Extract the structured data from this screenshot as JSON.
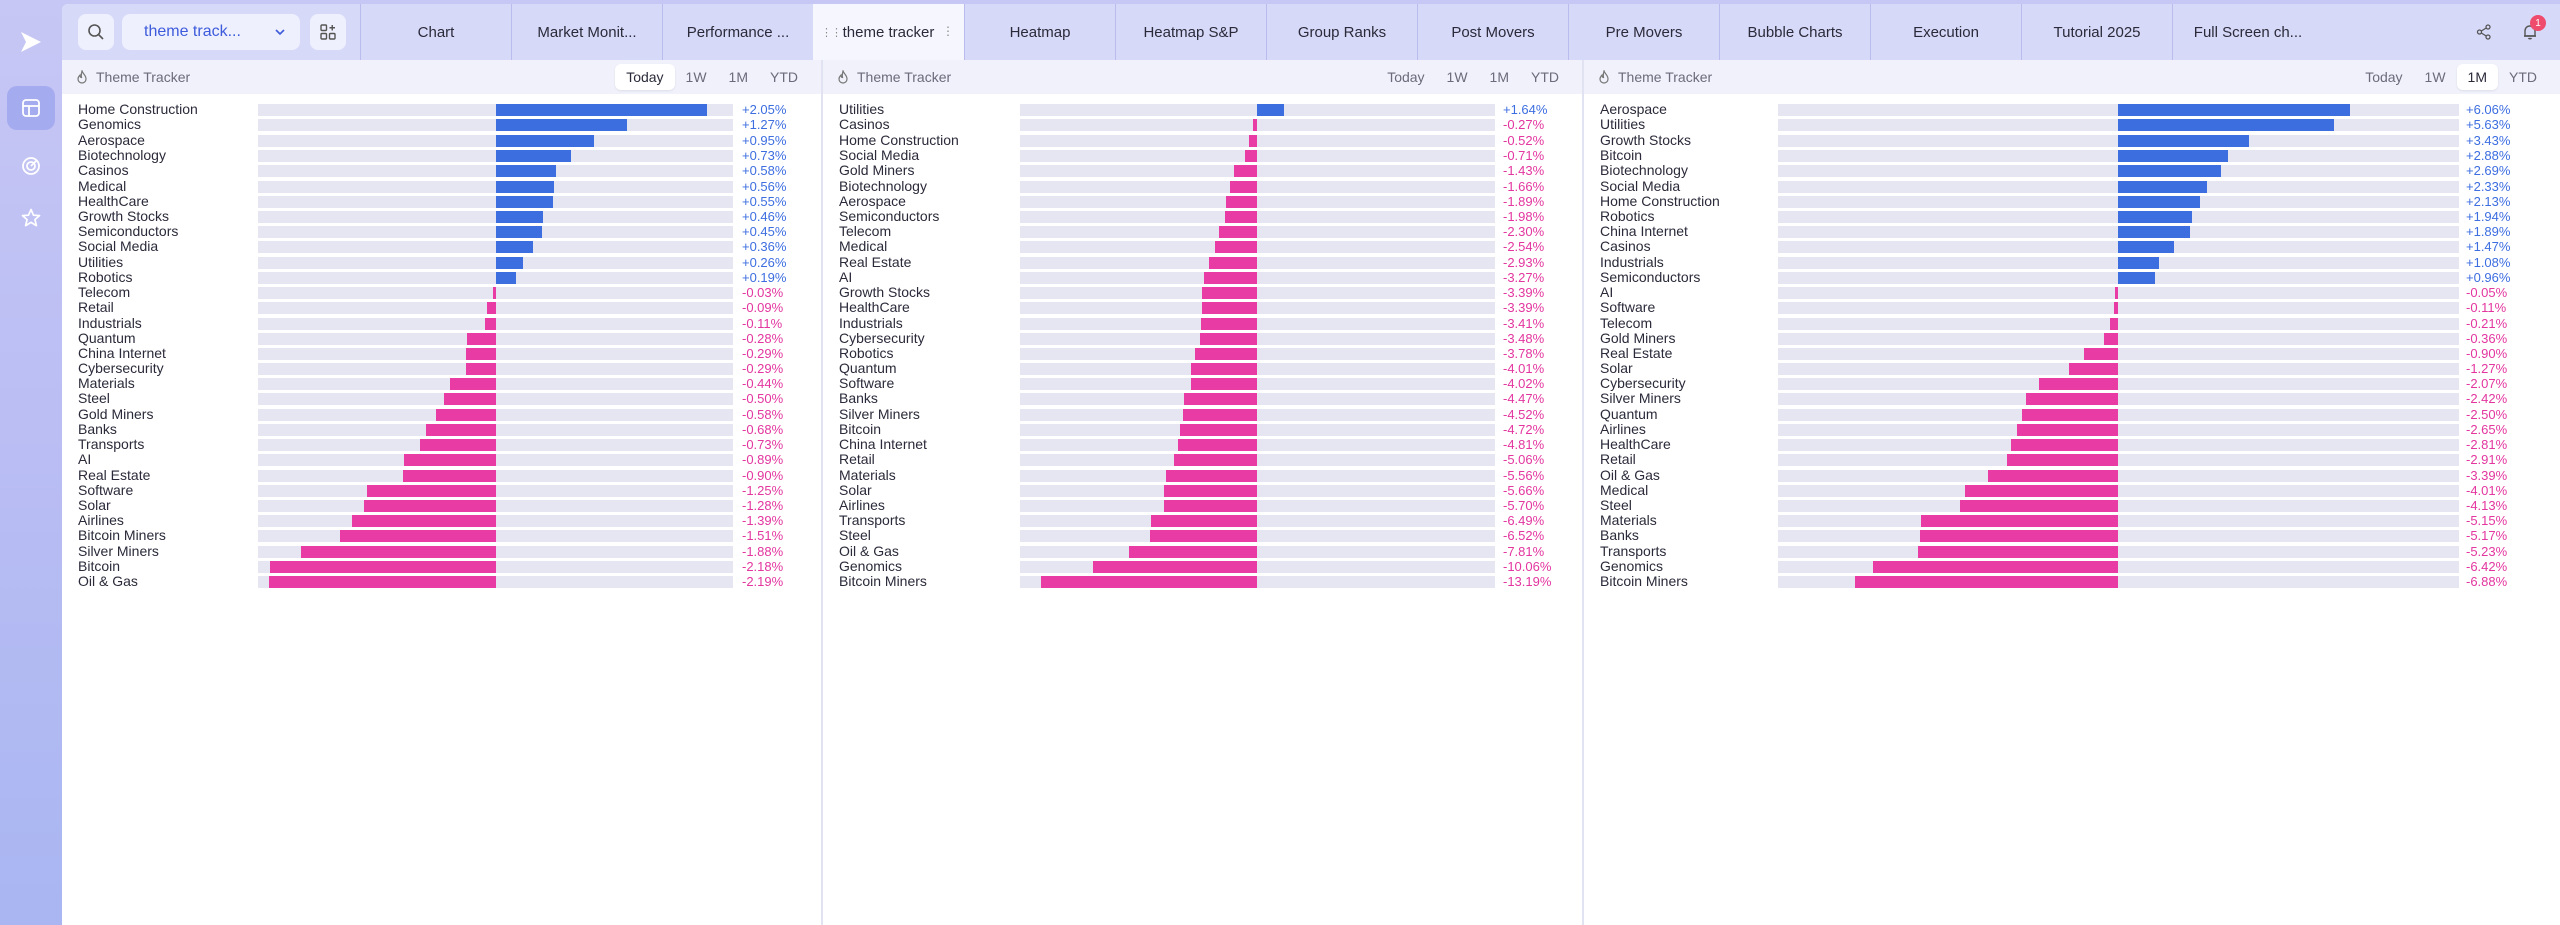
{
  "colors": {
    "positive": "#3d6ee0",
    "negative": "#e83ba4",
    "track": "#e6e6f3",
    "accent": "#3e5bdc"
  },
  "sidebar": {
    "logo_icon": "play-triangle-icon",
    "items": [
      {
        "icon": "layout-icon",
        "active": true
      },
      {
        "icon": "radar-icon",
        "active": false
      },
      {
        "icon": "star-icon",
        "active": false
      }
    ]
  },
  "topbar": {
    "layout_name": "theme track...",
    "tabs": [
      {
        "label": "Chart",
        "active": false
      },
      {
        "label": "Market Monit...",
        "active": false
      },
      {
        "label": "Performance ...",
        "active": false
      },
      {
        "label": "theme tracker",
        "active": true
      },
      {
        "label": "Heatmap",
        "active": false
      },
      {
        "label": "Heatmap S&P",
        "active": false
      },
      {
        "label": "Group Ranks",
        "active": false
      },
      {
        "label": "Post Movers",
        "active": false
      },
      {
        "label": "Pre Movers",
        "active": false
      },
      {
        "label": "Bubble Charts",
        "active": false
      },
      {
        "label": "Execution",
        "active": false
      },
      {
        "label": "Tutorial 2025",
        "active": false
      },
      {
        "label": "Full Screen ch...",
        "active": false
      }
    ],
    "notification_count": "1"
  },
  "panels": [
    {
      "title": "Theme Tracker",
      "ranges": [
        "Today",
        "1W",
        "1M",
        "YTD"
      ],
      "active_range": "Today",
      "scale_max": 2.3,
      "items": [
        {
          "name": "Home Construction",
          "value": 2.05,
          "label": "+2.05%"
        },
        {
          "name": "Genomics",
          "value": 1.27,
          "label": "+1.27%"
        },
        {
          "name": "Aerospace",
          "value": 0.95,
          "label": "+0.95%"
        },
        {
          "name": "Biotechnology",
          "value": 0.73,
          "label": "+0.73%"
        },
        {
          "name": "Casinos",
          "value": 0.58,
          "label": "+0.58%"
        },
        {
          "name": "Medical",
          "value": 0.56,
          "label": "+0.56%"
        },
        {
          "name": "HealthCare",
          "value": 0.55,
          "label": "+0.55%"
        },
        {
          "name": "Growth Stocks",
          "value": 0.46,
          "label": "+0.46%"
        },
        {
          "name": "Semiconductors",
          "value": 0.45,
          "label": "+0.45%"
        },
        {
          "name": "Social Media",
          "value": 0.36,
          "label": "+0.36%"
        },
        {
          "name": "Utilities",
          "value": 0.26,
          "label": "+0.26%"
        },
        {
          "name": "Robotics",
          "value": 0.19,
          "label": "+0.19%"
        },
        {
          "name": "Telecom",
          "value": -0.03,
          "label": "-0.03%"
        },
        {
          "name": "Retail",
          "value": -0.09,
          "label": "-0.09%"
        },
        {
          "name": "Industrials",
          "value": -0.11,
          "label": "-0.11%"
        },
        {
          "name": "Quantum",
          "value": -0.28,
          "label": "-0.28%"
        },
        {
          "name": "China Internet",
          "value": -0.29,
          "label": "-0.29%"
        },
        {
          "name": "Cybersecurity",
          "value": -0.29,
          "label": "-0.29%"
        },
        {
          "name": "Materials",
          "value": -0.44,
          "label": "-0.44%"
        },
        {
          "name": "Steel",
          "value": -0.5,
          "label": "-0.50%"
        },
        {
          "name": "Gold Miners",
          "value": -0.58,
          "label": "-0.58%"
        },
        {
          "name": "Banks",
          "value": -0.68,
          "label": "-0.68%"
        },
        {
          "name": "Transports",
          "value": -0.73,
          "label": "-0.73%"
        },
        {
          "name": "AI",
          "value": -0.89,
          "label": "-0.89%"
        },
        {
          "name": "Real Estate",
          "value": -0.9,
          "label": "-0.90%"
        },
        {
          "name": "Software",
          "value": -1.25,
          "label": "-1.25%"
        },
        {
          "name": "Solar",
          "value": -1.28,
          "label": "-1.28%"
        },
        {
          "name": "Airlines",
          "value": -1.39,
          "label": "-1.39%"
        },
        {
          "name": "Bitcoin Miners",
          "value": -1.51,
          "label": "-1.51%"
        },
        {
          "name": "Silver Miners",
          "value": -1.88,
          "label": "-1.88%"
        },
        {
          "name": "Bitcoin",
          "value": -2.18,
          "label": "-2.18%"
        },
        {
          "name": "Oil & Gas",
          "value": -2.19,
          "label": "-2.19%"
        }
      ]
    },
    {
      "title": "Theme Tracker",
      "ranges": [
        "Today",
        "1W",
        "1M",
        "YTD"
      ],
      "active_range": "",
      "scale_max": 14.5,
      "items": [
        {
          "name": "Utilities",
          "value": 1.64,
          "label": "+1.64%"
        },
        {
          "name": "Casinos",
          "value": -0.27,
          "label": "-0.27%"
        },
        {
          "name": "Home Construction",
          "value": -0.52,
          "label": "-0.52%"
        },
        {
          "name": "Social Media",
          "value": -0.71,
          "label": "-0.71%"
        },
        {
          "name": "Gold Miners",
          "value": -1.43,
          "label": "-1.43%"
        },
        {
          "name": "Biotechnology",
          "value": -1.66,
          "label": "-1.66%"
        },
        {
          "name": "Aerospace",
          "value": -1.89,
          "label": "-1.89%"
        },
        {
          "name": "Semiconductors",
          "value": -1.98,
          "label": "-1.98%"
        },
        {
          "name": "Telecom",
          "value": -2.3,
          "label": "-2.30%"
        },
        {
          "name": "Medical",
          "value": -2.54,
          "label": "-2.54%"
        },
        {
          "name": "Real Estate",
          "value": -2.93,
          "label": "-2.93%"
        },
        {
          "name": "AI",
          "value": -3.27,
          "label": "-3.27%"
        },
        {
          "name": "Growth Stocks",
          "value": -3.39,
          "label": "-3.39%"
        },
        {
          "name": "HealthCare",
          "value": -3.39,
          "label": "-3.39%"
        },
        {
          "name": "Industrials",
          "value": -3.41,
          "label": "-3.41%"
        },
        {
          "name": "Cybersecurity",
          "value": -3.48,
          "label": "-3.48%"
        },
        {
          "name": "Robotics",
          "value": -3.78,
          "label": "-3.78%"
        },
        {
          "name": "Quantum",
          "value": -4.01,
          "label": "-4.01%"
        },
        {
          "name": "Software",
          "value": -4.02,
          "label": "-4.02%"
        },
        {
          "name": "Banks",
          "value": -4.47,
          "label": "-4.47%"
        },
        {
          "name": "Silver Miners",
          "value": -4.52,
          "label": "-4.52%"
        },
        {
          "name": "Bitcoin",
          "value": -4.72,
          "label": "-4.72%"
        },
        {
          "name": "China Internet",
          "value": -4.81,
          "label": "-4.81%"
        },
        {
          "name": "Retail",
          "value": -5.06,
          "label": "-5.06%"
        },
        {
          "name": "Materials",
          "value": -5.56,
          "label": "-5.56%"
        },
        {
          "name": "Solar",
          "value": -5.66,
          "label": "-5.66%"
        },
        {
          "name": "Airlines",
          "value": -5.7,
          "label": "-5.70%"
        },
        {
          "name": "Transports",
          "value": -6.49,
          "label": "-6.49%"
        },
        {
          "name": "Steel",
          "value": -6.52,
          "label": "-6.52%"
        },
        {
          "name": "Oil & Gas",
          "value": -7.81,
          "label": "-7.81%"
        },
        {
          "name": "Genomics",
          "value": -10.06,
          "label": "-10.06%"
        },
        {
          "name": "Bitcoin Miners",
          "value": -13.19,
          "label": "-13.19%"
        }
      ]
    },
    {
      "title": "Theme Tracker",
      "ranges": [
        "Today",
        "1W",
        "1M",
        "YTD"
      ],
      "active_range": "1M",
      "scale_max": 8.9,
      "items": [
        {
          "name": "Aerospace",
          "value": 6.06,
          "label": "+6.06%"
        },
        {
          "name": "Utilities",
          "value": 5.63,
          "label": "+5.63%"
        },
        {
          "name": "Growth Stocks",
          "value": 3.43,
          "label": "+3.43%"
        },
        {
          "name": "Bitcoin",
          "value": 2.88,
          "label": "+2.88%"
        },
        {
          "name": "Biotechnology",
          "value": 2.69,
          "label": "+2.69%"
        },
        {
          "name": "Social Media",
          "value": 2.33,
          "label": "+2.33%"
        },
        {
          "name": "Home Construction",
          "value": 2.13,
          "label": "+2.13%"
        },
        {
          "name": "Robotics",
          "value": 1.94,
          "label": "+1.94%"
        },
        {
          "name": "China Internet",
          "value": 1.89,
          "label": "+1.89%"
        },
        {
          "name": "Casinos",
          "value": 1.47,
          "label": "+1.47%"
        },
        {
          "name": "Industrials",
          "value": 1.08,
          "label": "+1.08%"
        },
        {
          "name": "Semiconductors",
          "value": 0.96,
          "label": "+0.96%"
        },
        {
          "name": "AI",
          "value": -0.05,
          "label": "-0.05%"
        },
        {
          "name": "Software",
          "value": -0.11,
          "label": "-0.11%"
        },
        {
          "name": "Telecom",
          "value": -0.21,
          "label": "-0.21%"
        },
        {
          "name": "Gold Miners",
          "value": -0.36,
          "label": "-0.36%"
        },
        {
          "name": "Real Estate",
          "value": -0.9,
          "label": "-0.90%"
        },
        {
          "name": "Solar",
          "value": -1.27,
          "label": "-1.27%"
        },
        {
          "name": "Cybersecurity",
          "value": -2.07,
          "label": "-2.07%"
        },
        {
          "name": "Silver Miners",
          "value": -2.42,
          "label": "-2.42%"
        },
        {
          "name": "Quantum",
          "value": -2.5,
          "label": "-2.50%"
        },
        {
          "name": "Airlines",
          "value": -2.65,
          "label": "-2.65%"
        },
        {
          "name": "HealthCare",
          "value": -2.81,
          "label": "-2.81%"
        },
        {
          "name": "Retail",
          "value": -2.91,
          "label": "-2.91%"
        },
        {
          "name": "Oil & Gas",
          "value": -3.39,
          "label": "-3.39%"
        },
        {
          "name": "Medical",
          "value": -4.01,
          "label": "-4.01%"
        },
        {
          "name": "Steel",
          "value": -4.13,
          "label": "-4.13%"
        },
        {
          "name": "Materials",
          "value": -5.15,
          "label": "-5.15%"
        },
        {
          "name": "Banks",
          "value": -5.17,
          "label": "-5.17%"
        },
        {
          "name": "Transports",
          "value": -5.23,
          "label": "-5.23%"
        },
        {
          "name": "Genomics",
          "value": -6.42,
          "label": "-6.42%"
        },
        {
          "name": "Bitcoin Miners",
          "value": -6.88,
          "label": "-6.88%"
        }
      ]
    }
  ]
}
